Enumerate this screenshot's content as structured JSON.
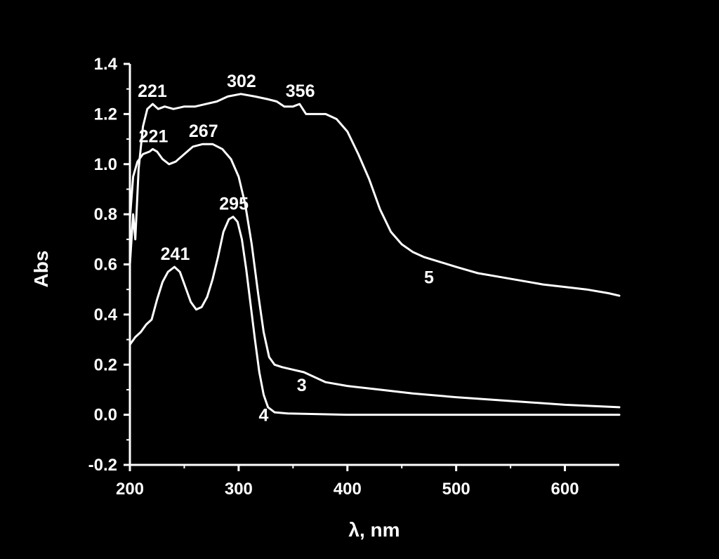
{
  "chart_data": {
    "type": "line",
    "title": "",
    "xlabel": "λ, nm",
    "ylabel": "Abs",
    "xlim": [
      200,
      650
    ],
    "ylim": [
      -0.2,
      1.4
    ],
    "x_ticks": [
      "200",
      "300",
      "400",
      "500",
      "600"
    ],
    "y_ticks": [
      "-0.2",
      "0.0",
      "0.2",
      "0.4",
      "0.6",
      "0.8",
      "1.0",
      "1.2",
      "1.4"
    ],
    "grid": false,
    "legend": "none",
    "colors": {
      "background": "#000000",
      "foreground": "#ffffff"
    },
    "series": [
      {
        "name": "3",
        "points": [
          [
            200,
            0.78
          ],
          [
            203,
            0.95
          ],
          [
            207,
            1.01
          ],
          [
            212,
            1.04
          ],
          [
            218,
            1.05
          ],
          [
            221,
            1.06
          ],
          [
            225,
            1.05
          ],
          [
            230,
            1.02
          ],
          [
            236,
            1.0
          ],
          [
            242,
            1.01
          ],
          [
            250,
            1.04
          ],
          [
            258,
            1.07
          ],
          [
            267,
            1.08
          ],
          [
            276,
            1.08
          ],
          [
            285,
            1.06
          ],
          [
            293,
            1.02
          ],
          [
            300,
            0.95
          ],
          [
            306,
            0.84
          ],
          [
            312,
            0.68
          ],
          [
            318,
            0.48
          ],
          [
            323,
            0.33
          ],
          [
            328,
            0.23
          ],
          [
            333,
            0.2
          ],
          [
            340,
            0.19
          ],
          [
            350,
            0.18
          ],
          [
            360,
            0.17
          ],
          [
            370,
            0.15
          ],
          [
            380,
            0.13
          ],
          [
            400,
            0.115
          ],
          [
            430,
            0.1
          ],
          [
            460,
            0.085
          ],
          [
            500,
            0.07
          ],
          [
            550,
            0.055
          ],
          [
            600,
            0.04
          ],
          [
            650,
            0.03
          ]
        ]
      },
      {
        "name": "4",
        "points": [
          [
            200,
            0.28
          ],
          [
            205,
            0.31
          ],
          [
            210,
            0.33
          ],
          [
            215,
            0.36
          ],
          [
            220,
            0.38
          ],
          [
            225,
            0.46
          ],
          [
            230,
            0.53
          ],
          [
            235,
            0.57
          ],
          [
            241,
            0.59
          ],
          [
            246,
            0.57
          ],
          [
            251,
            0.51
          ],
          [
            256,
            0.45
          ],
          [
            261,
            0.42
          ],
          [
            266,
            0.43
          ],
          [
            271,
            0.47
          ],
          [
            276,
            0.54
          ],
          [
            281,
            0.63
          ],
          [
            286,
            0.73
          ],
          [
            291,
            0.78
          ],
          [
            295,
            0.79
          ],
          [
            299,
            0.77
          ],
          [
            303,
            0.7
          ],
          [
            307,
            0.58
          ],
          [
            311,
            0.44
          ],
          [
            315,
            0.3
          ],
          [
            319,
            0.17
          ],
          [
            323,
            0.08
          ],
          [
            327,
            0.03
          ],
          [
            333,
            0.01
          ],
          [
            345,
            0.005
          ],
          [
            400,
            0.0
          ],
          [
            500,
            0.0
          ],
          [
            650,
            0.0
          ]
        ]
      },
      {
        "name": "5",
        "points": [
          [
            200,
            0.6
          ],
          [
            203,
            0.8
          ],
          [
            205,
            0.7
          ],
          [
            208,
            0.98
          ],
          [
            212,
            1.15
          ],
          [
            216,
            1.22
          ],
          [
            221,
            1.24
          ],
          [
            226,
            1.22
          ],
          [
            232,
            1.23
          ],
          [
            240,
            1.22
          ],
          [
            250,
            1.23
          ],
          [
            260,
            1.23
          ],
          [
            270,
            1.24
          ],
          [
            280,
            1.25
          ],
          [
            290,
            1.27
          ],
          [
            302,
            1.28
          ],
          [
            315,
            1.27
          ],
          [
            326,
            1.26
          ],
          [
            335,
            1.25
          ],
          [
            342,
            1.23
          ],
          [
            350,
            1.23
          ],
          [
            356,
            1.24
          ],
          [
            362,
            1.2
          ],
          [
            370,
            1.2
          ],
          [
            380,
            1.2
          ],
          [
            390,
            1.18
          ],
          [
            400,
            1.13
          ],
          [
            410,
            1.04
          ],
          [
            420,
            0.94
          ],
          [
            430,
            0.82
          ],
          [
            440,
            0.73
          ],
          [
            450,
            0.68
          ],
          [
            460,
            0.65
          ],
          [
            470,
            0.63
          ],
          [
            485,
            0.61
          ],
          [
            500,
            0.59
          ],
          [
            520,
            0.565
          ],
          [
            540,
            0.55
          ],
          [
            560,
            0.535
          ],
          [
            580,
            0.52
          ],
          [
            600,
            0.51
          ],
          [
            620,
            0.5
          ],
          [
            640,
            0.485
          ],
          [
            650,
            0.475
          ]
        ]
      }
    ],
    "annotations": [
      {
        "text": "221",
        "x": 220,
        "y": 1.24,
        "series": "5"
      },
      {
        "text": "302",
        "x": 302,
        "y": 1.28,
        "series": "5"
      },
      {
        "text": "356",
        "x": 356,
        "y": 1.24,
        "series": "5"
      },
      {
        "text": "221",
        "x": 221,
        "y": 1.06,
        "series": "3"
      },
      {
        "text": "267",
        "x": 267,
        "y": 1.08,
        "series": "3"
      },
      {
        "text": "295",
        "x": 295,
        "y": 0.79,
        "series": "4"
      },
      {
        "text": "241",
        "x": 241,
        "y": 0.59,
        "series": "4"
      }
    ],
    "curve_labels": [
      {
        "text": "5",
        "x": 475,
        "y": 0.55
      },
      {
        "text": "3",
        "x": 358,
        "y": 0.12
      },
      {
        "text": "4",
        "x": 323,
        "y": 0.0
      }
    ]
  }
}
